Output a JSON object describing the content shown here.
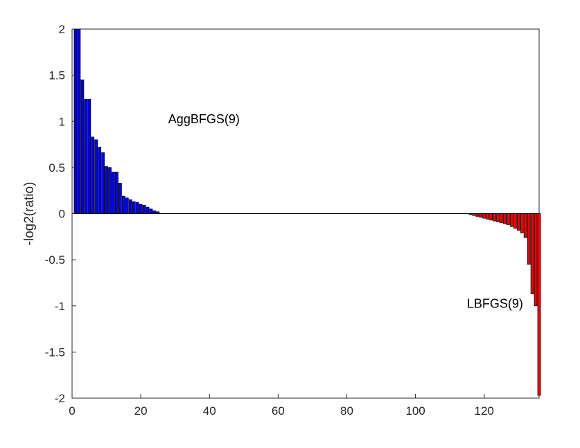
{
  "chart_data": {
    "type": "bar",
    "ylabel": "-log2(ratio)",
    "xlabel": "",
    "xlim": [
      0,
      136
    ],
    "ylim": [
      -2,
      2
    ],
    "xticks": [
      "0",
      "20",
      "40",
      "60",
      "80",
      "100",
      "120"
    ],
    "yticks": [
      "-2",
      "-1.5",
      "-1",
      "-0.5",
      "0",
      "0.5",
      "1",
      "1.5",
      "2"
    ],
    "grid": false,
    "annotations": [
      {
        "text": "AggBFGS(9)",
        "x": 28,
        "y": 0.98
      },
      {
        "text": "LBFGS(9)",
        "x": 115,
        "y": -1.02
      }
    ],
    "series": [
      {
        "color": "#0000ff",
        "x": [
          1,
          2,
          3,
          4,
          5,
          6,
          7,
          8,
          9,
          10,
          11,
          12,
          13,
          14,
          15,
          16,
          17,
          18,
          19,
          20,
          21,
          22,
          23,
          24,
          25
        ],
        "values": [
          2.0,
          2.0,
          1.45,
          1.24,
          1.24,
          0.83,
          0.8,
          0.72,
          0.66,
          0.51,
          0.5,
          0.45,
          0.45,
          0.33,
          0.19,
          0.17,
          0.15,
          0.13,
          0.12,
          0.1,
          0.09,
          0.07,
          0.05,
          0.03,
          0.02
        ]
      },
      {
        "color": "#ff0000",
        "x": [
          116,
          117,
          118,
          119,
          120,
          121,
          122,
          123,
          124,
          125,
          126,
          127,
          128,
          129,
          130,
          131,
          132,
          133,
          134,
          135,
          136
        ],
        "values": [
          -0.01,
          -0.02,
          -0.03,
          -0.04,
          -0.05,
          -0.06,
          -0.07,
          -0.08,
          -0.09,
          -0.1,
          -0.11,
          -0.12,
          -0.14,
          -0.16,
          -0.18,
          -0.21,
          -0.26,
          -0.55,
          -0.87,
          -1.0,
          -1.97
        ]
      }
    ]
  }
}
